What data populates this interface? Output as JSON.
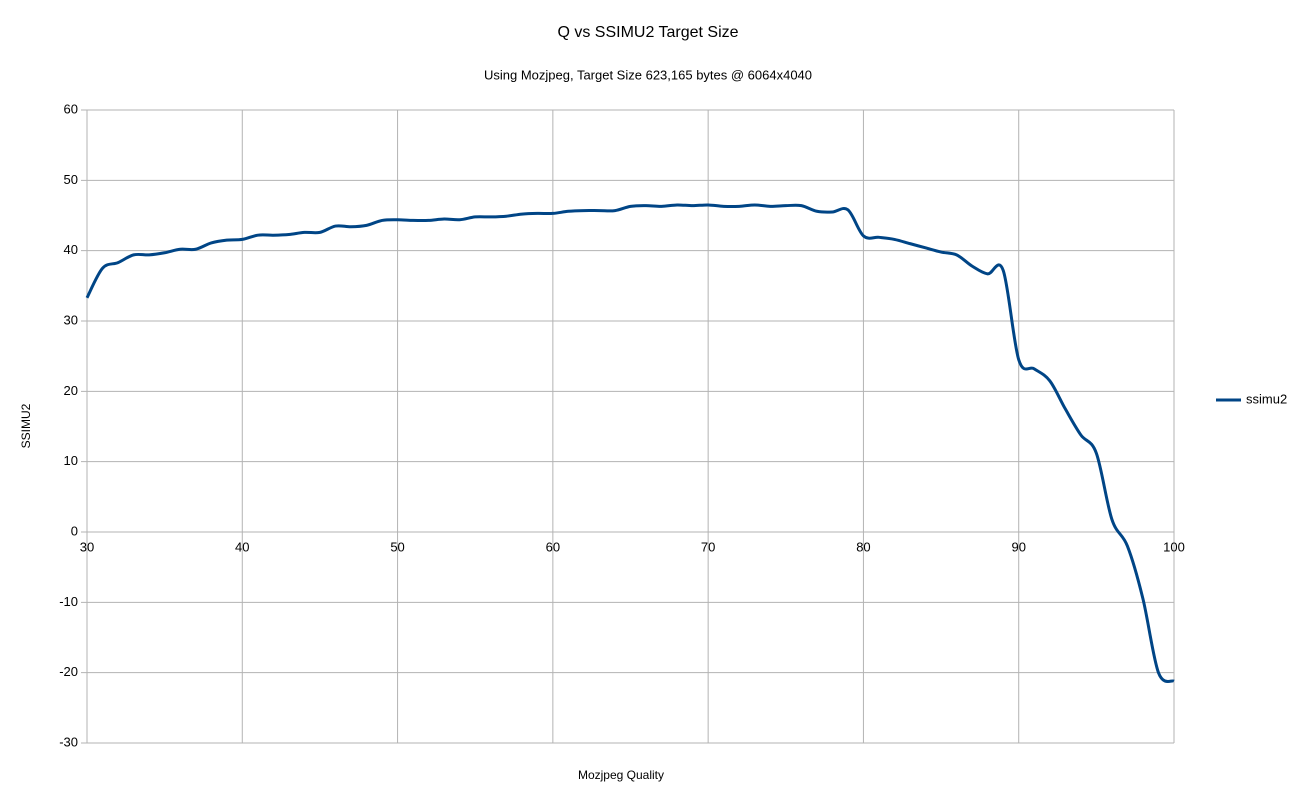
{
  "chart_data": {
    "type": "line",
    "title": "Q vs SSIMU2 Target Size",
    "subtitle": "Using Mozjpeg, Target Size 623,165 bytes @ 6064x4040",
    "x_label": "Mozjpeg Quality",
    "y_label": "SSIMU2",
    "x": [
      30,
      31,
      32,
      33,
      34,
      35,
      36,
      37,
      38,
      39,
      40,
      41,
      42,
      43,
      44,
      45,
      46,
      47,
      48,
      49,
      50,
      51,
      52,
      53,
      54,
      55,
      56,
      57,
      58,
      59,
      60,
      61,
      62,
      63,
      64,
      65,
      66,
      67,
      68,
      69,
      70,
      71,
      72,
      73,
      74,
      75,
      76,
      77,
      78,
      79,
      80,
      81,
      82,
      83,
      84,
      85,
      86,
      87,
      88,
      89,
      90,
      91,
      92,
      93,
      94,
      95,
      96,
      97,
      98,
      99,
      100
    ],
    "series": [
      {
        "name": "ssimu2",
        "color": "#004586",
        "values": [
          33.3,
          37.5,
          38.3,
          39.4,
          39.4,
          39.7,
          40.2,
          40.2,
          41.1,
          41.5,
          41.6,
          42.2,
          42.2,
          42.3,
          42.6,
          42.6,
          43.5,
          43.4,
          43.6,
          44.3,
          44.4,
          44.3,
          44.3,
          44.5,
          44.4,
          44.8,
          44.8,
          44.9,
          45.2,
          45.3,
          45.3,
          45.6,
          45.7,
          45.7,
          45.7,
          46.3,
          46.4,
          46.3,
          46.5,
          46.4,
          46.5,
          46.3,
          46.3,
          46.5,
          46.3,
          46.4,
          46.4,
          45.6,
          45.5,
          45.8,
          42.1,
          41.9,
          41.6,
          41.0,
          40.4,
          39.8,
          39.4,
          37.8,
          36.7,
          37.2,
          24.5,
          23.2,
          21.5,
          17.5,
          13.8,
          11.2,
          1.8,
          -2.0,
          -9.5,
          -20.0,
          -21.2
        ]
      }
    ],
    "xlim": [
      30,
      100
    ],
    "xticks": [
      30,
      40,
      50,
      60,
      70,
      80,
      90,
      100
    ],
    "ylim": [
      -30,
      60
    ],
    "yticks": [
      -30,
      -20,
      -10,
      0,
      10,
      20,
      30,
      40,
      50,
      60
    ],
    "grid": true,
    "legend": "right",
    "smooth": true
  }
}
